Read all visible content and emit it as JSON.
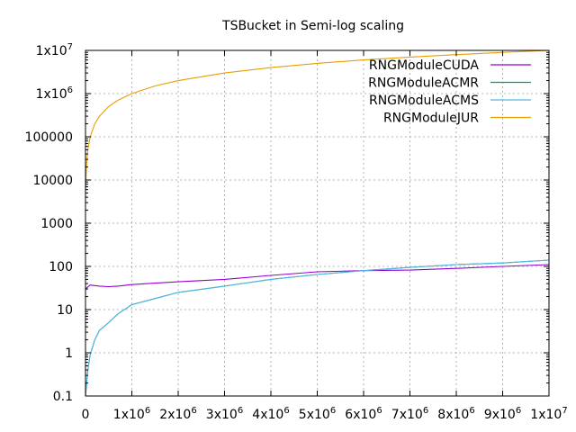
{
  "chart_data": {
    "type": "line",
    "title": "TSBucket in Semi-log scaling",
    "xlabel": "",
    "ylabel": "",
    "xlim": [
      0,
      10000000
    ],
    "ylim": [
      0.1,
      10000000
    ],
    "yscale": "log",
    "grid": true,
    "legend_position": "top-right",
    "x_ticks": [
      {
        "base": "0",
        "exp": ""
      },
      {
        "base": "1x10",
        "exp": "6"
      },
      {
        "base": "2x10",
        "exp": "6"
      },
      {
        "base": "3x10",
        "exp": "6"
      },
      {
        "base": "4x10",
        "exp": "6"
      },
      {
        "base": "5x10",
        "exp": "6"
      },
      {
        "base": "6x10",
        "exp": "6"
      },
      {
        "base": "7x10",
        "exp": "6"
      },
      {
        "base": "8x10",
        "exp": "6"
      },
      {
        "base": "9x10",
        "exp": "6"
      },
      {
        "base": "1x10",
        "exp": "7"
      }
    ],
    "y_ticks": [
      {
        "base": "0.1",
        "exp": ""
      },
      {
        "base": "1",
        "exp": ""
      },
      {
        "base": "10",
        "exp": ""
      },
      {
        "base": "100",
        "exp": ""
      },
      {
        "base": "1000",
        "exp": ""
      },
      {
        "base": "10000",
        "exp": ""
      },
      {
        "base": "100000",
        "exp": ""
      },
      {
        "base": "1x10",
        "exp": "6"
      },
      {
        "base": "1x10",
        "exp": "7"
      }
    ],
    "series": [
      {
        "name": "RNGModuleCUDA",
        "color": "#9400d3",
        "x": [
          0,
          100000,
          200000,
          300000,
          500000,
          700000,
          1000000,
          1500000,
          2000000,
          3000000,
          4000000,
          5000000,
          6000000,
          7000000,
          8000000,
          9000000,
          10000000
        ],
        "y": [
          30,
          37,
          36,
          35,
          34,
          35,
          38,
          41,
          44,
          50,
          62,
          75,
          80,
          82,
          90,
          100,
          110
        ]
      },
      {
        "name": "RNGModuleACMR",
        "color": "#009e73",
        "x": [
          0,
          50000,
          100000,
          200000,
          300000,
          500000,
          700000,
          1000000,
          1500000,
          2000000,
          3000000,
          4000000,
          5000000,
          6000000,
          7000000,
          8000000,
          9000000,
          10000000
        ],
        "y": [
          0.1,
          0.4,
          0.9,
          2,
          3.3,
          5,
          8,
          13,
          18,
          25,
          35,
          50,
          65,
          80,
          95,
          110,
          120,
          140
        ]
      },
      {
        "name": "RNGModuleACMS",
        "color": "#56b4e9",
        "x": [
          0,
          50000,
          100000,
          200000,
          300000,
          500000,
          700000,
          1000000,
          1500000,
          2000000,
          3000000,
          4000000,
          5000000,
          6000000,
          7000000,
          8000000,
          9000000,
          10000000
        ],
        "y": [
          0.1,
          0.4,
          0.9,
          2,
          3.3,
          5,
          8,
          13,
          18,
          25,
          35,
          50,
          65,
          80,
          95,
          110,
          120,
          140
        ]
      },
      {
        "name": "RNGModuleJUR",
        "color": "#e69f00",
        "x": [
          0,
          20000,
          50000,
          100000,
          200000,
          300000,
          500000,
          700000,
          1000000,
          1500000,
          2000000,
          3000000,
          4000000,
          5000000,
          6000000,
          7000000,
          8000000,
          9000000,
          10000000
        ],
        "y": [
          5000,
          20000,
          50000,
          100000,
          200000,
          300000,
          500000,
          700000,
          1000000,
          1500000,
          2000000,
          3000000,
          4000000,
          5000000,
          6000000,
          7000000,
          8000000,
          9000000,
          10000000
        ]
      }
    ]
  }
}
